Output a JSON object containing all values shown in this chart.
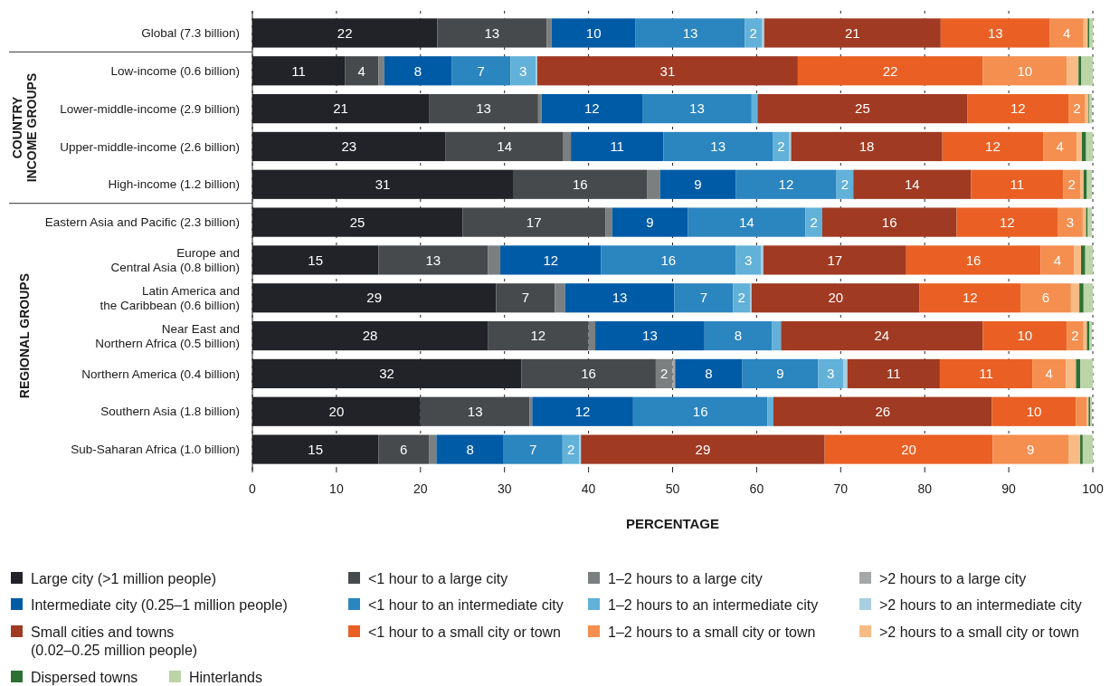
{
  "chart_data": {
    "type": "bar",
    "orientation": "horizontal",
    "stacked": true,
    "categories": [
      "Global (7.3 billion)",
      "Low-income (0.6 billion)",
      "Lower-middle-income (2.9 billion)",
      "Upper-middle-income (2.6 billion)",
      "High-income (1.2 billion)",
      "Eastern Asia and Pacific (2.3 billion)",
      "Europe and\nCentral Asia (0.8 billion)",
      "Latin America and\nthe Caribbean (0.6 billion)",
      "Near East and\nNorthern Africa (0.5 billion)",
      "Northern America (0.4 billion)",
      "Southern Asia (1.8 billion)",
      "Sub-Saharan Africa (1.0 billion)"
    ],
    "series": [
      {
        "name": "Large city (>1 million people)",
        "color": "#222328",
        "values": [
          22,
          11,
          21,
          23,
          31,
          25,
          15,
          29,
          28,
          32,
          20,
          15
        ],
        "value_labels": [
          "22",
          "11",
          "21",
          "23",
          "31",
          "25",
          "15",
          "29",
          "28",
          "32",
          "20",
          "15"
        ]
      },
      {
        "name": "<1 hour to a large city",
        "color": "#474a4d",
        "values": [
          13,
          4,
          13,
          14,
          16,
          17,
          13,
          7,
          12,
          16,
          13,
          6
        ],
        "value_labels": [
          "13",
          "4",
          "13",
          "14",
          "16",
          "17",
          "13",
          "7",
          "12",
          "16",
          "13",
          "6"
        ]
      },
      {
        "name": "1–2 hours to a large city",
        "color": "#7b7f7f",
        "values": [
          0.6,
          0.7,
          0.4,
          0.9,
          1.5,
          0.8,
          1.5,
          1.2,
          0.8,
          2,
          0.3,
          0.9
        ],
        "value_labels": [
          null,
          null,
          null,
          null,
          null,
          null,
          null,
          null,
          null,
          "2",
          null,
          null
        ]
      },
      {
        "name": ">2 hours to a large city",
        "color": "#a5a7a8",
        "values": [
          0,
          0,
          0,
          0,
          0,
          0,
          0,
          0,
          0,
          0.3,
          0,
          0
        ]
      },
      {
        "name": "Intermediate city (0.25–1 million people)",
        "color": "#005ba6",
        "values": [
          10,
          8,
          12,
          11,
          9,
          9,
          12,
          13,
          13,
          8,
          12,
          8
        ],
        "value_labels": [
          "10",
          "8",
          "12",
          "11",
          "9",
          "9",
          "12",
          "13",
          "13",
          "8",
          "12",
          "8"
        ]
      },
      {
        "name": "<1 hour to an intermediate city",
        "color": "#2b85bf",
        "values": [
          13,
          7,
          13,
          13,
          12,
          14,
          16,
          7,
          8,
          9,
          16,
          7
        ],
        "value_labels": [
          "13",
          "7",
          "13",
          "13",
          "12",
          "14",
          "16",
          "7",
          "8",
          "9",
          "16",
          "7"
        ]
      },
      {
        "name": "1–2 hours to an intermediate city",
        "color": "#62b1d9",
        "values": [
          2,
          3,
          0.7,
          2,
          2,
          2,
          3,
          2,
          1.1,
          3,
          0.7,
          2
        ],
        "value_labels": [
          "2",
          "3",
          null,
          "2",
          "2",
          "2",
          "3",
          "2",
          null,
          "3",
          null,
          "2"
        ]
      },
      {
        "name": ">2 hours to an intermediate city",
        "color": "#a8cfe0",
        "values": [
          0.3,
          0.2,
          null,
          0.2,
          null,
          null,
          0.3,
          0.2,
          null,
          0.5,
          null,
          0.2
        ]
      },
      {
        "name": "Small cities and towns\n(0.02–0.25 million people)",
        "color": "#a03a22",
        "values": [
          21,
          31,
          25,
          18,
          14,
          16,
          17,
          20,
          24,
          11,
          26,
          29
        ],
        "value_labels": [
          "21",
          "31",
          "25",
          "18",
          "14",
          "16",
          "17",
          "20",
          "24",
          "11",
          "26",
          "29"
        ]
      },
      {
        "name": "<1 hour to a small city or town",
        "color": "#ea6024",
        "values": [
          13,
          22,
          12,
          12,
          11,
          12,
          16,
          12,
          10,
          11,
          10,
          20
        ],
        "value_labels": [
          "13",
          "22",
          "12",
          "12",
          "11",
          "12",
          "16",
          "12",
          "10",
          "11",
          "10",
          "20"
        ]
      },
      {
        "name": "1–2 hours to a small city or town",
        "color": "#f48f4f",
        "values": [
          4,
          10,
          2,
          4,
          2,
          3,
          4,
          6,
          2,
          4,
          1.3,
          9
        ],
        "value_labels": [
          "4",
          "10",
          "2",
          "4",
          "2",
          "3",
          "4",
          "6",
          "2",
          "4",
          null,
          "9"
        ]
      },
      {
        "name": ">2 hours to a small city or town",
        "color": "#f9bb86",
        "values": [
          0.5,
          1.4,
          0.4,
          0.6,
          0.4,
          0.4,
          0.8,
          1.0,
          0.4,
          1.2,
          0.2,
          1.4
        ]
      },
      {
        "name": "Dispersed towns",
        "color": "#2d7034",
        "values": [
          0.2,
          0.3,
          0.1,
          0.5,
          0.4,
          0.2,
          0.5,
          0.5,
          0.3,
          0.5,
          0.2,
          0.3
        ]
      },
      {
        "name": "Hinterlands",
        "color": "#bbd5a8",
        "values": [
          0.4,
          1.4,
          0.3,
          0.8,
          0.6,
          0.5,
          0.9,
          1.1,
          0.3,
          1.5,
          0.2,
          1.2
        ]
      }
    ],
    "xlim": [
      0,
      100
    ],
    "xticks": [
      0,
      10,
      20,
      30,
      40,
      50,
      60,
      70,
      80,
      90,
      100
    ],
    "xlabel": "PERCENTAGE",
    "grid": "x",
    "legend": "bottom",
    "annotations": [
      "COUNTRY\nINCOME GROUPS",
      "REGIONAL GROUPS"
    ]
  }
}
